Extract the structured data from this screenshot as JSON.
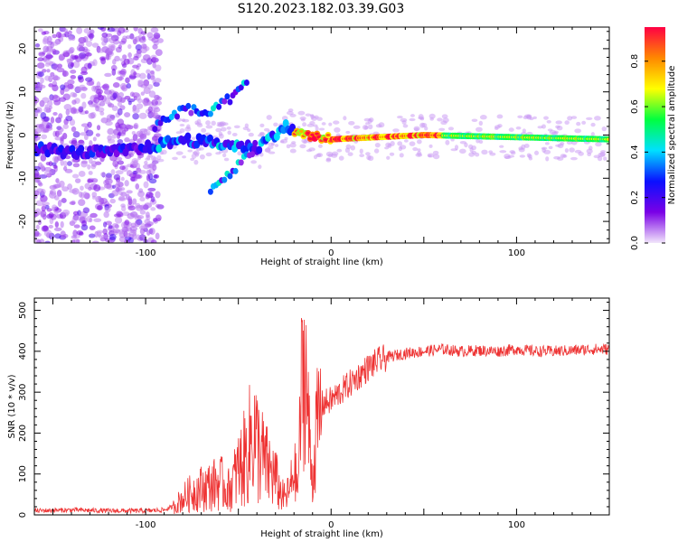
{
  "title": "S120.2023.182.03.39.G03",
  "chart_data": [
    {
      "type": "heatmap",
      "xlabel": "Height of straight line (km)",
      "ylabel": "Frequency (Hz)",
      "xlim": [
        -160,
        150
      ],
      "ylim": [
        -25,
        25
      ],
      "xticks": [
        -100,
        0,
        100
      ],
      "yticks": [
        -20,
        -10,
        0,
        10,
        20
      ],
      "colorbar": {
        "label": "Normalized spectral amplitude",
        "range": [
          0,
          0.95
        ],
        "ticks": [
          0.0,
          0.2,
          0.4,
          0.6,
          0.8
        ],
        "colormap": [
          "#f2e6fb",
          "#7a00e6",
          "#0a10ff",
          "#00e0ff",
          "#00ff40",
          "#ffff00",
          "#ff8800",
          "#ff0044"
        ]
      },
      "features": {
        "noise_region_x": [
          -160,
          -100
        ],
        "main_trace": [
          {
            "x": -160,
            "f": -3
          },
          {
            "x": -140,
            "f": -4
          },
          {
            "x": -120,
            "f": -4
          },
          {
            "x": -100,
            "f": -3
          },
          {
            "x": -80,
            "f": -1
          },
          {
            "x": -60,
            "f": -2
          },
          {
            "x": -40,
            "f": -3
          },
          {
            "x": -25,
            "f": 2
          },
          {
            "x": -15,
            "f": 0
          },
          {
            "x": 0,
            "f": -1
          },
          {
            "x": 50,
            "f": 0
          },
          {
            "x": 150,
            "f": -1
          }
        ],
        "upper_branch": [
          {
            "x": -95,
            "f": 2
          },
          {
            "x": -80,
            "f": 6
          },
          {
            "x": -65,
            "f": 5
          },
          {
            "x": -50,
            "f": 10
          },
          {
            "x": -45,
            "f": 12
          }
        ],
        "lower_branch": [
          {
            "x": -65,
            "f": -13
          },
          {
            "x": -55,
            "f": -9
          },
          {
            "x": -45,
            "f": -5
          },
          {
            "x": -40,
            "f": -2
          }
        ]
      }
    },
    {
      "type": "line",
      "xlabel": "Height of straight line (km)",
      "ylabel": "SNR (10 * v/v)",
      "xlim": [
        -160,
        150
      ],
      "ylim": [
        0,
        530
      ],
      "xticks": [
        -100,
        0,
        100
      ],
      "yticks": [
        0,
        100,
        200,
        300,
        400,
        500
      ],
      "color": "#ee3333",
      "series": [
        {
          "x": [
            -160,
            -140,
            -120,
            -100,
            -90,
            -85,
            -80,
            -75,
            -70,
            -65,
            -60,
            -55,
            -50,
            -45,
            -42,
            -40,
            -38,
            -35,
            -30,
            -28,
            -25,
            -22,
            -20,
            -18,
            -16,
            -14,
            -12,
            -10,
            -8,
            -5,
            0,
            5,
            10,
            15,
            20,
            25,
            30,
            40,
            50,
            60,
            70,
            80,
            90,
            100,
            110,
            120,
            130,
            140,
            150
          ],
          "y": [
            10,
            12,
            10,
            10,
            12,
            20,
            40,
            55,
            65,
            70,
            80,
            60,
            110,
            150,
            210,
            170,
            150,
            120,
            90,
            60,
            40,
            60,
            120,
            60,
            300,
            380,
            200,
            80,
            200,
            270,
            280,
            300,
            320,
            340,
            360,
            375,
            385,
            395,
            400,
            405,
            400,
            402,
            400,
            405,
            400,
            400,
            402,
            405,
            405
          ]
        }
      ]
    }
  ]
}
